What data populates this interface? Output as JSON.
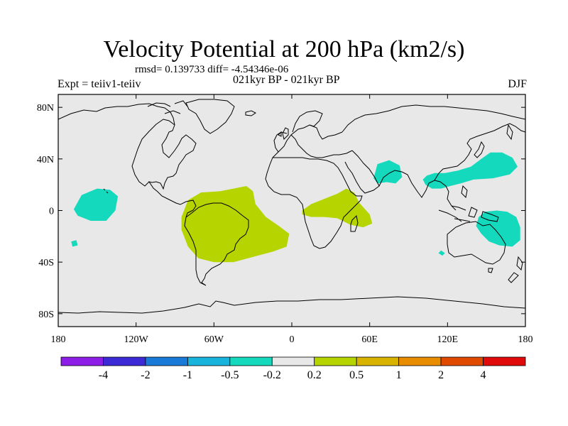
{
  "header": {
    "title": "Velocity Potential at 200 hPa (km2/s)",
    "stats": "rmsd= 0.139733 diff= -4.54346e-06",
    "experiment": "Expt = teiiv1-teiiv",
    "period": "021kyr BP - 021kyr BP",
    "season": "DJF"
  },
  "map": {
    "ocean_color": "#e8e8e8",
    "lat_range": [
      -90,
      90
    ],
    "lon_range": [
      -180,
      180
    ],
    "lat_ticks": [
      {
        "value": 80,
        "label": "80N"
      },
      {
        "value": 40,
        "label": "40N"
      },
      {
        "value": 0,
        "label": "0"
      },
      {
        "value": -40,
        "label": "40S"
      },
      {
        "value": -80,
        "label": "80S"
      }
    ],
    "lon_ticks": [
      {
        "value": -180,
        "label": "180"
      },
      {
        "value": -120,
        "label": "120W"
      },
      {
        "value": -60,
        "label": "60W"
      },
      {
        "value": 0,
        "label": "0"
      },
      {
        "value": 60,
        "label": "60E"
      },
      {
        "value": 120,
        "label": "120E"
      },
      {
        "value": 180,
        "label": "180"
      }
    ]
  },
  "anomalies": [
    {
      "name": "pacific-negative-anomaly",
      "color": "#14d9bd",
      "points": [
        [
          -168,
          1
        ],
        [
          -162,
          12
        ],
        [
          -150,
          17
        ],
        [
          -140,
          16
        ],
        [
          -134,
          11
        ],
        [
          -136,
          0
        ],
        [
          -143,
          -8
        ],
        [
          -155,
          -8
        ],
        [
          -165,
          -4
        ]
      ]
    },
    {
      "name": "south-pacific-negative-spot",
      "color": "#14d9bd",
      "points": [
        [
          -170,
          -24
        ],
        [
          -166,
          -23
        ],
        [
          -165,
          -27
        ],
        [
          -169,
          -28
        ]
      ]
    },
    {
      "name": "south-america-positive-anomaly",
      "color": "#b5d400",
      "points": [
        [
          -85,
          -5
        ],
        [
          -80,
          8
        ],
        [
          -70,
          14
        ],
        [
          -55,
          15
        ],
        [
          -45,
          17
        ],
        [
          -35,
          19
        ],
        [
          -30,
          15
        ],
        [
          -28,
          5
        ],
        [
          -20,
          -5
        ],
        [
          -10,
          -12
        ],
        [
          -2,
          -18
        ],
        [
          -4,
          -28
        ],
        [
          -15,
          -32
        ],
        [
          -30,
          -36
        ],
        [
          -45,
          -40
        ],
        [
          -60,
          -40
        ],
        [
          -72,
          -37
        ],
        [
          -80,
          -28
        ],
        [
          -85,
          -15
        ]
      ]
    },
    {
      "name": "africa-positive-anomaly",
      "color": "#b5d400",
      "points": [
        [
          8,
          0
        ],
        [
          15,
          5
        ],
        [
          25,
          9
        ],
        [
          35,
          13
        ],
        [
          42,
          17
        ],
        [
          48,
          14
        ],
        [
          52,
          6
        ],
        [
          60,
          -3
        ],
        [
          62,
          -10
        ],
        [
          55,
          -13
        ],
        [
          45,
          -11
        ],
        [
          35,
          -6
        ],
        [
          25,
          -5
        ],
        [
          15,
          -5
        ],
        [
          8,
          -3
        ]
      ]
    },
    {
      "name": "arabia-negative-anomaly",
      "color": "#14d9bd",
      "points": [
        [
          63,
          25
        ],
        [
          66,
          36
        ],
        [
          75,
          39
        ],
        [
          83,
          35
        ],
        [
          85,
          26
        ],
        [
          80,
          21
        ],
        [
          73,
          22
        ],
        [
          66,
          21
        ]
      ]
    },
    {
      "name": "asia-negative-anomaly",
      "color": "#14d9bd",
      "points": [
        [
          101,
          24
        ],
        [
          104,
          27
        ],
        [
          110,
          29
        ],
        [
          118,
          29
        ],
        [
          128,
          31
        ],
        [
          138,
          34
        ],
        [
          146,
          40
        ],
        [
          153,
          45
        ],
        [
          162,
          45
        ],
        [
          170,
          41
        ],
        [
          174,
          34
        ],
        [
          168,
          28
        ],
        [
          155,
          25
        ],
        [
          140,
          24
        ],
        [
          130,
          21
        ],
        [
          122,
          19
        ],
        [
          115,
          17
        ],
        [
          108,
          17
        ],
        [
          103,
          20
        ]
      ]
    },
    {
      "name": "australia-negative-anomaly",
      "color": "#14d9bd",
      "points": [
        [
          144,
          -5
        ],
        [
          149,
          -1
        ],
        [
          158,
          0
        ],
        [
          166,
          -1
        ],
        [
          173,
          -5
        ],
        [
          176,
          -13
        ],
        [
          176,
          -23
        ],
        [
          170,
          -28
        ],
        [
          160,
          -27
        ],
        [
          152,
          -24
        ],
        [
          146,
          -18
        ],
        [
          142,
          -12
        ]
      ]
    },
    {
      "name": "indian-ocean-negative-spot",
      "color": "#14d9bd",
      "points": [
        [
          115,
          -31
        ],
        [
          118,
          -33
        ],
        [
          116,
          -35
        ],
        [
          113,
          -33
        ]
      ]
    }
  ],
  "colorbar": {
    "colors": [
      "#8c1ee8",
      "#3c2ad6",
      "#1a7ad8",
      "#18b4dc",
      "#14d9bd",
      "#e8e8e8",
      "#b5d400",
      "#d8b400",
      "#e88c00",
      "#e04a00",
      "#e00a0a"
    ],
    "labels": [
      "-4",
      "-2",
      "-1",
      "-0.5",
      "-0.2",
      "0.2",
      "0.5",
      "1",
      "2",
      "4"
    ]
  }
}
